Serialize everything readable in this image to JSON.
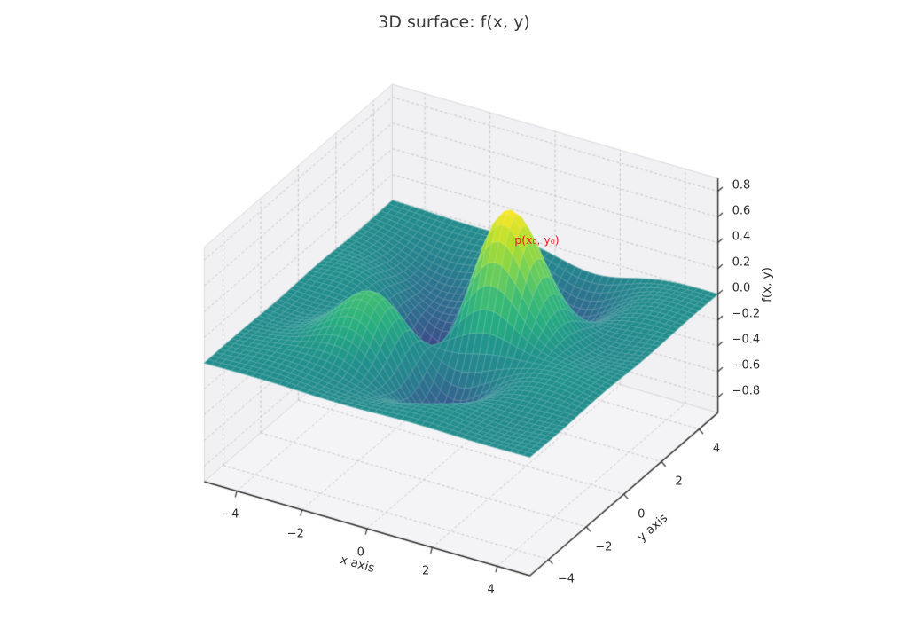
{
  "figure": {
    "title": "3D surface: f(x, y)",
    "background": "#ffffff"
  },
  "chart_data": {
    "type": "surface",
    "title": "3D surface: f(x, y)",
    "xlabel": "x axis",
    "ylabel": "y axis",
    "zlabel": "f(x, y)",
    "x_range": [
      -5,
      5
    ],
    "y_range": [
      -5,
      5
    ],
    "z_range": [
      -0.92,
      0.9
    ],
    "x_ticks": {
      "values": [
        -4,
        -2,
        0,
        2,
        4
      ],
      "labels": [
        "−4",
        "−2",
        "0",
        "2",
        "4"
      ]
    },
    "y_ticks": {
      "values": [
        -4,
        -2,
        0,
        2,
        4
      ],
      "labels": [
        "−4",
        "−2",
        "0",
        "2",
        "4"
      ]
    },
    "z_ticks": {
      "values": [
        -0.8,
        -0.6,
        -0.4,
        -0.2,
        0,
        0.2,
        0.4,
        0.6,
        0.8
      ],
      "labels": [
        "−0.8",
        "−0.6",
        "−0.4",
        "−0.2",
        "0.0",
        "0.2",
        "0.4",
        "0.6",
        "0.8"
      ]
    },
    "grid_points": 48,
    "surface_formula": "0.85*exp(-((x-1.0)**2+(y-0.7)**2)/1.7) - 0.78*exp(-((x+1.4)**2+(y-0.35)**2)/1.3) + 0.38*exp(-((x+1.7)**2+(y+1.8)**2)/2.0) - 0.42*exp(-((x-0.3)**2+(y+2.1)**2)/2.0) - 0.30*exp(-((x-1.2)**2+(y-3.4)**2)/2.6) - 0.26*exp(-((x+2.1)**2+(y-2.6)**2)/2.4) + 0.12*sin(1.2*x)*sin(1.2*y)*exp(-(x*x+y*y)/18)",
    "colormap": "viridis",
    "colormap_stops": [
      [
        0.0,
        "#440154"
      ],
      [
        0.1,
        "#482878"
      ],
      [
        0.2,
        "#3e4a89"
      ],
      [
        0.3,
        "#31688e"
      ],
      [
        0.4,
        "#26828e"
      ],
      [
        0.5,
        "#21918c"
      ],
      [
        0.6,
        "#27ad81"
      ],
      [
        0.7,
        "#42be71"
      ],
      [
        0.8,
        "#77d153"
      ],
      [
        0.9,
        "#b4de2c"
      ],
      [
        1.0,
        "#fde725"
      ]
    ],
    "grid_style": "dashed",
    "view": {
      "elev": 30,
      "azim": -60
    },
    "annotation": {
      "text": "p(x₀, y₀)",
      "x": 0.6,
      "y": 1.8,
      "z": 0.5,
      "color": "#ee1c1c"
    },
    "colors": {
      "pane_wall": "#f1f1f3",
      "pane_floor": "#f4f4f6",
      "pane_edge": "#d9d9dc",
      "grid_line": "#c0c0c0",
      "spine": "#2e2e2e",
      "tick_text": "#2d2d2d",
      "surface_edge": "rgba(255,255,255,0.32)"
    }
  }
}
